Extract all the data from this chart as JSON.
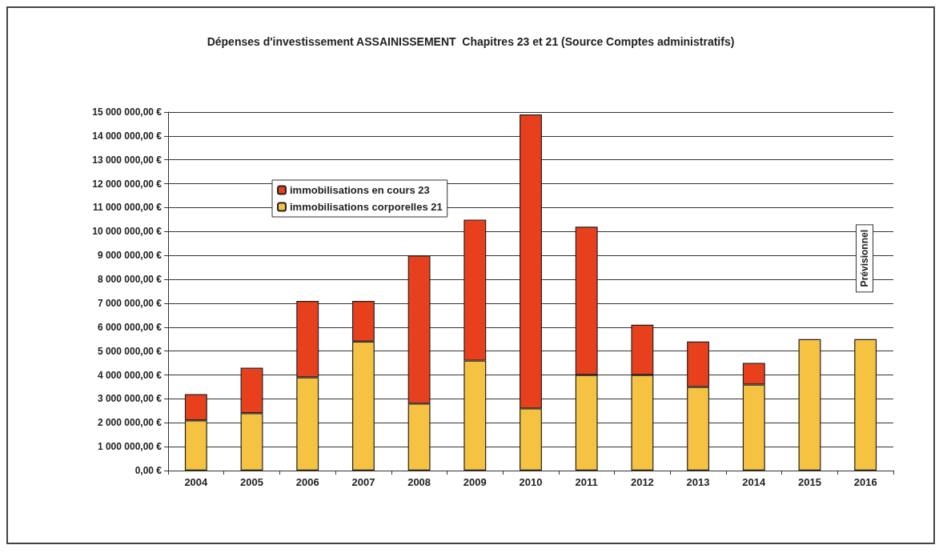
{
  "chart_data": {
    "type": "bar",
    "title": "Dépenses d'investissement ASSAINISSEMENT  Chapitres 23 et 21 (Source Comptes administratifs)",
    "categories": [
      "2004",
      "2005",
      "2006",
      "2007",
      "2008",
      "2009",
      "2010",
      "2011",
      "2012",
      "2013",
      "2014",
      "2015",
      "2016"
    ],
    "stacked": true,
    "series": [
      {
        "name": "immobilisations corporelles 21",
        "color": "#f5c242",
        "values": [
          2100000,
          2400000,
          3900000,
          5400000,
          2800000,
          4600000,
          2600000,
          4000000,
          4000000,
          3500000,
          3600000,
          5500000,
          5500000
        ]
      },
      {
        "name": "immobilisations en cours 23",
        "color": "#e8401c",
        "values": [
          1100000,
          1900000,
          3200000,
          1700000,
          6200000,
          5900000,
          12300000,
          6200000,
          2100000,
          1900000,
          900000,
          null,
          null
        ]
      }
    ],
    "ylim": [
      0,
      15000000
    ],
    "yticks": [
      {
        "value": 0,
        "label": "0,00 €"
      },
      {
        "value": 1000000,
        "label": "1 000 000,00 €"
      },
      {
        "value": 2000000,
        "label": "2 000 000,00 €"
      },
      {
        "value": 3000000,
        "label": "3 000 000,00 €"
      },
      {
        "value": 4000000,
        "label": "4 000 000,00 €"
      },
      {
        "value": 5000000,
        "label": "5 000 000,00 €"
      },
      {
        "value": 6000000,
        "label": "6 000 000,00 €"
      },
      {
        "value": 7000000,
        "label": "7 000 000,00 €"
      },
      {
        "value": 8000000,
        "label": "8 000 000,00 €"
      },
      {
        "value": 9000000,
        "label": "9 000 000,00 €"
      },
      {
        "value": 10000000,
        "label": "10 000 000,00 €"
      },
      {
        "value": 11000000,
        "label": "11 000 000,00 €"
      },
      {
        "value": 12000000,
        "label": "12 000 000,00 €"
      },
      {
        "value": 13000000,
        "label": "13 000 000,00 €"
      },
      {
        "value": 14000000,
        "label": "14 000 000,00 €"
      },
      {
        "value": 15000000,
        "label": "15 000 000,00 €"
      }
    ],
    "grid": "y",
    "legend": "top left",
    "annotations": [
      "Prévisionnel"
    ]
  }
}
